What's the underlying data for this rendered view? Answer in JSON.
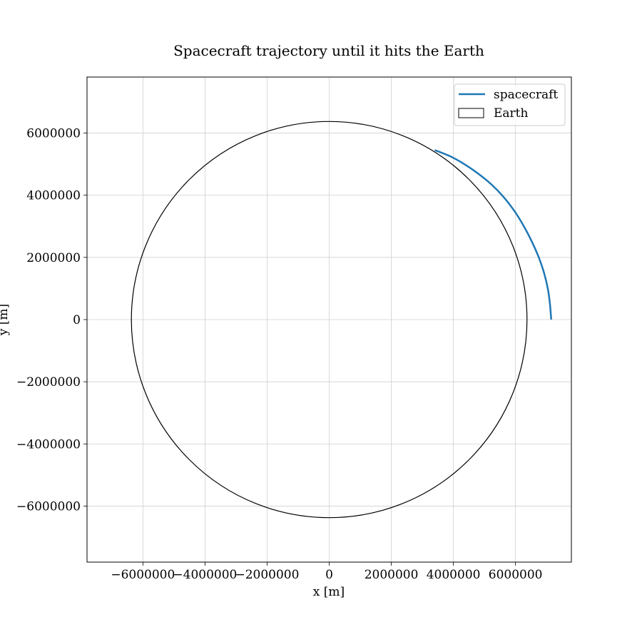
{
  "chart_data": {
    "type": "line",
    "title": "Spacecraft trajectory until it hits the Earth",
    "xlabel": "x [m]",
    "ylabel": "y [m]",
    "xlim": [
      -7800000,
      7800000
    ],
    "ylim": [
      -7800000,
      7800000
    ],
    "grid": true,
    "legend_position": "top-right",
    "xticks": [
      -6000000,
      -4000000,
      -2000000,
      0,
      2000000,
      4000000,
      6000000
    ],
    "xtick_labels": [
      "−6000000",
      "−4000000",
      "−2000000",
      "0",
      "2000000",
      "4000000",
      "6000000"
    ],
    "yticks": [
      6000000,
      4000000,
      2000000,
      0,
      -2000000,
      -4000000,
      -6000000
    ],
    "ytick_labels": [
      "6000000",
      "4000000",
      "2000000",
      "0",
      "−2000000",
      "−4000000",
      "−6000000"
    ],
    "series": [
      {
        "name": "spacecraft",
        "color": "#1f77b4",
        "x": [
          7150000,
          7110000,
          7040000,
          6920000,
          6750000,
          6530000,
          6270000,
          5960000,
          5610000,
          5220000,
          4790000,
          4350000,
          3900000,
          3400000
        ],
        "y": [
          0,
          500000,
          1000000,
          1500000,
          2000000,
          2500000,
          3000000,
          3500000,
          3950000,
          4350000,
          4700000,
          5000000,
          5250000,
          5450000
        ]
      }
    ],
    "shapes": [
      {
        "name": "Earth",
        "kind": "circle",
        "center": [
          0,
          0
        ],
        "radius": 6371000,
        "edge_color": "#000000",
        "fill": "none"
      }
    ]
  }
}
